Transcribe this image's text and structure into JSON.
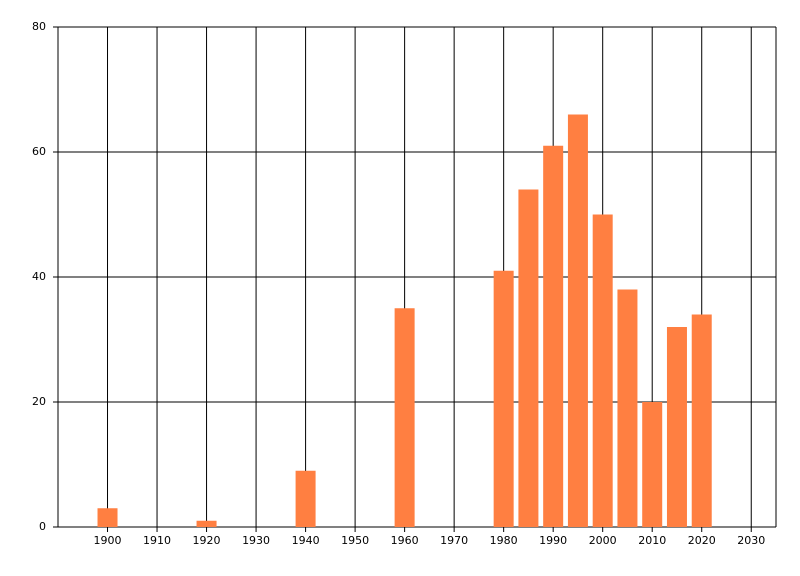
{
  "chart_data": {
    "type": "bar",
    "x": [
      1900,
      1920,
      1940,
      1960,
      1980,
      1985,
      1990,
      1995,
      2000,
      2005,
      2010,
      2015,
      2020
    ],
    "values": [
      3,
      1,
      9,
      35,
      41,
      54,
      61,
      66,
      50,
      38,
      20,
      32,
      34
    ],
    "color": "#ff7f41",
    "xlim": [
      1890,
      2035
    ],
    "xticks": [
      1900,
      1910,
      1920,
      1930,
      1940,
      1950,
      1960,
      1970,
      1980,
      1990,
      2000,
      2010,
      2020,
      2030
    ],
    "ylim": [
      0,
      80
    ],
    "yticks": [
      0,
      20,
      40,
      60,
      80
    ],
    "grid": true
  }
}
